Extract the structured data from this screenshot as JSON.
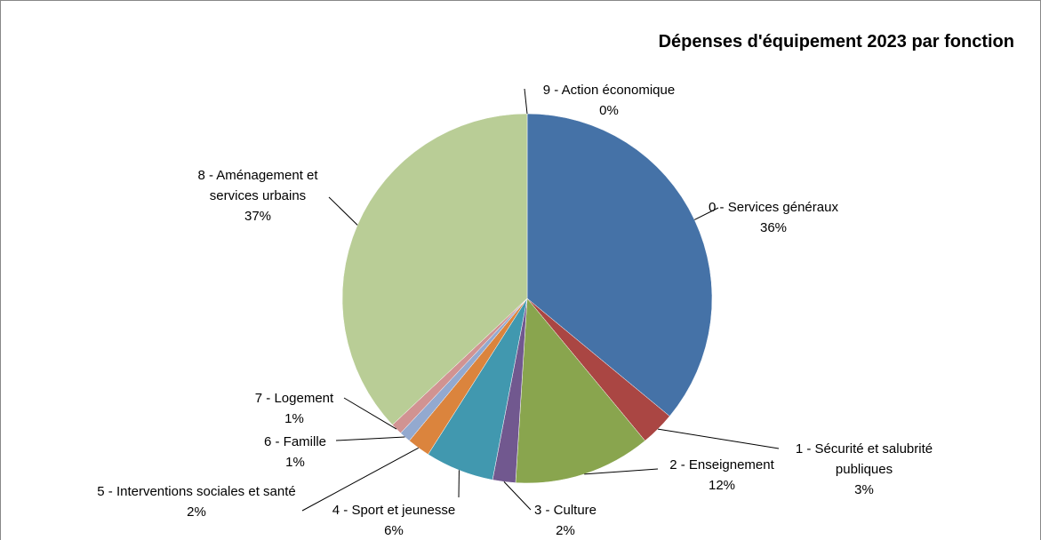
{
  "chart_data": {
    "type": "pie",
    "title": "Dépenses d'équipement 2023 par fonction",
    "categories": [
      "0 - Services généraux",
      "1 - Sécurité et salubrité publiques",
      "2 - Enseignement",
      "3 - Culture",
      "4 - Sport et jeunesse",
      "5 - Interventions sociales et santé",
      "6 - Famille",
      "7 - Logement",
      "8 - Aménagement et services urbains",
      "9 - Action économique"
    ],
    "values": [
      36,
      3,
      12,
      2,
      6,
      2,
      1,
      1,
      37,
      0
    ],
    "value_labels": [
      "36%",
      "3%",
      "12%",
      "2%",
      "6%",
      "2%",
      "1%",
      "1%",
      "37%",
      "0%"
    ],
    "colors": [
      "#4572a7",
      "#aa4643",
      "#89a54e",
      "#71588f",
      "#4198af",
      "#db843d",
      "#93a9cf",
      "#d19392",
      "#b9cd96",
      "#a99bbd"
    ]
  }
}
